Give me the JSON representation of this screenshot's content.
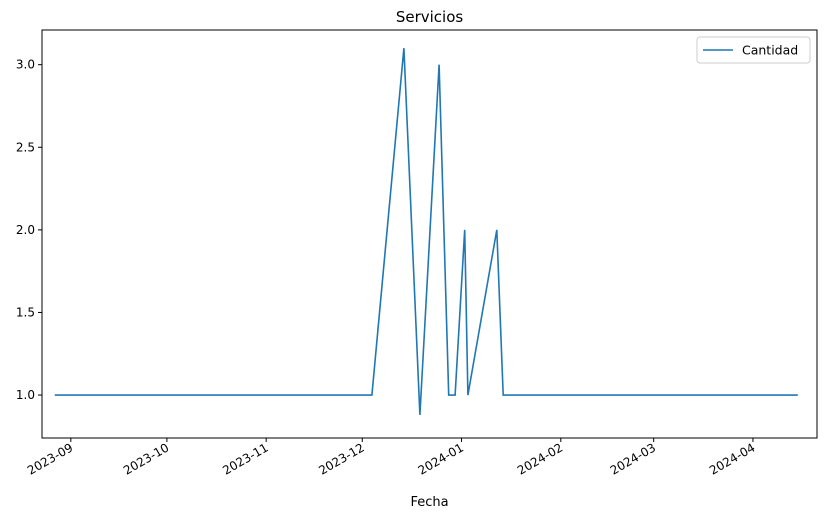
{
  "chart_data": {
    "type": "line",
    "title": "Servicios",
    "xlabel": "Fecha",
    "ylabel": "",
    "x_tick_labels": [
      "2023-09",
      "2023-10",
      "2023-11",
      "2023-12",
      "2024-01",
      "2024-02",
      "2024-03",
      "2024-04"
    ],
    "y_tick_labels": [
      "1.0",
      "1.5",
      "2.0",
      "2.5",
      "3.0"
    ],
    "x_range": [
      "2023-08-23",
      "2024-04-21"
    ],
    "ylim": [
      0.74,
      3.21
    ],
    "legend": {
      "position": "top-right",
      "entries": [
        "Cantidad"
      ]
    },
    "grid": false,
    "colors": {
      "series": "#1f77b4"
    },
    "series": [
      {
        "name": "Cantidad",
        "x": [
          "2023-08-27",
          "2023-12-04",
          "2023-12-14",
          "2023-12-19",
          "2023-12-25",
          "2023-12-28",
          "2023-12-30",
          "2024-01-02",
          "2024-01-03",
          "2024-01-12",
          "2024-01-14",
          "2024-04-15"
        ],
        "values": [
          1,
          1,
          3.1,
          0.88,
          3,
          1,
          1,
          2,
          1,
          2,
          1,
          1
        ]
      }
    ]
  }
}
